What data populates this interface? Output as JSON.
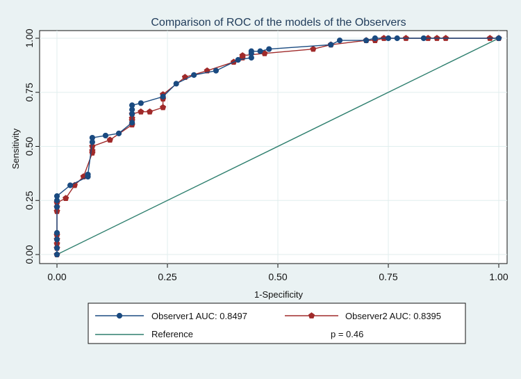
{
  "chart_data": {
    "type": "line",
    "title": "Comparison of ROC of the models of the Observers",
    "xlabel": "1-Specificity",
    "ylabel": "Sensitivity",
    "xlim": [
      0,
      1
    ],
    "ylim": [
      0,
      1
    ],
    "x_ticks": [
      "0.00",
      "0.25",
      "0.50",
      "0.75",
      "1.00"
    ],
    "y_ticks": [
      "0.00",
      "0.25",
      "0.50",
      "0.75",
      "1.00"
    ],
    "grid": true,
    "colors": {
      "observer1": "#1a4a80",
      "observer2": "#a02a2a",
      "reference": "#2e7f6e",
      "plot_bg": "#ffffff",
      "outer_bg": "#eaf2f3",
      "grid": "#e0eeee",
      "title": "#1f3b5a"
    },
    "series": [
      {
        "name": "Observer1",
        "marker": "circle",
        "points": [
          [
            0,
            0
          ],
          [
            0,
            0.03
          ],
          [
            0,
            0.07
          ],
          [
            0,
            0.1
          ],
          [
            0,
            0.22
          ],
          [
            0,
            0.25
          ],
          [
            0,
            0.27
          ],
          [
            0.03,
            0.32
          ],
          [
            0.07,
            0.36
          ],
          [
            0.07,
            0.37
          ],
          [
            0.08,
            0.52
          ],
          [
            0.08,
            0.54
          ],
          [
            0.11,
            0.55
          ],
          [
            0.14,
            0.56
          ],
          [
            0.17,
            0.61
          ],
          [
            0.17,
            0.65
          ],
          [
            0.17,
            0.67
          ],
          [
            0.17,
            0.69
          ],
          [
            0.19,
            0.7
          ],
          [
            0.24,
            0.73
          ],
          [
            0.27,
            0.79
          ],
          [
            0.31,
            0.83
          ],
          [
            0.36,
            0.85
          ],
          [
            0.41,
            0.9
          ],
          [
            0.44,
            0.91
          ],
          [
            0.44,
            0.93
          ],
          [
            0.44,
            0.94
          ],
          [
            0.46,
            0.94
          ],
          [
            0.48,
            0.95
          ],
          [
            0.62,
            0.97
          ],
          [
            0.64,
            0.99
          ],
          [
            0.7,
            0.99
          ],
          [
            0.72,
            1.0
          ],
          [
            0.75,
            1.0
          ],
          [
            0.77,
            1.0
          ],
          [
            0.83,
            1.0
          ],
          [
            1.0,
            1.0
          ]
        ]
      },
      {
        "name": "Observer2",
        "marker": "pentagon",
        "points": [
          [
            0,
            0
          ],
          [
            0,
            0.03
          ],
          [
            0,
            0.05
          ],
          [
            0,
            0.07
          ],
          [
            0,
            0.09
          ],
          [
            0,
            0.2
          ],
          [
            0,
            0.22
          ],
          [
            0,
            0.24
          ],
          [
            0.02,
            0.26
          ],
          [
            0.04,
            0.32
          ],
          [
            0.06,
            0.36
          ],
          [
            0.08,
            0.47
          ],
          [
            0.08,
            0.48
          ],
          [
            0.08,
            0.5
          ],
          [
            0.12,
            0.53
          ],
          [
            0.17,
            0.6
          ],
          [
            0.17,
            0.62
          ],
          [
            0.17,
            0.63
          ],
          [
            0.17,
            0.65
          ],
          [
            0.19,
            0.66
          ],
          [
            0.21,
            0.66
          ],
          [
            0.24,
            0.68
          ],
          [
            0.24,
            0.72
          ],
          [
            0.24,
            0.74
          ],
          [
            0.29,
            0.82
          ],
          [
            0.34,
            0.85
          ],
          [
            0.4,
            0.89
          ],
          [
            0.42,
            0.91
          ],
          [
            0.42,
            0.92
          ],
          [
            0.47,
            0.93
          ],
          [
            0.58,
            0.95
          ],
          [
            0.62,
            0.97
          ],
          [
            0.7,
            0.99
          ],
          [
            0.72,
            0.99
          ],
          [
            0.74,
            1.0
          ],
          [
            0.79,
            1.0
          ],
          [
            0.84,
            1.0
          ],
          [
            0.86,
            1.0
          ],
          [
            0.88,
            1.0
          ],
          [
            0.98,
            1.0
          ],
          [
            1.0,
            1.0
          ]
        ]
      },
      {
        "name": "Reference",
        "marker": "none",
        "points": [
          [
            0,
            0
          ],
          [
            1,
            1
          ]
        ]
      }
    ],
    "legend": {
      "position": "bottom",
      "entries": [
        {
          "label": "Observer1 AUC: 0.8497",
          "series": "Observer1"
        },
        {
          "label": "Observer2 AUC: 0.8395",
          "series": "Observer2"
        },
        {
          "label": "Reference",
          "series": "Reference"
        }
      ],
      "note": "p = 0.46"
    }
  }
}
